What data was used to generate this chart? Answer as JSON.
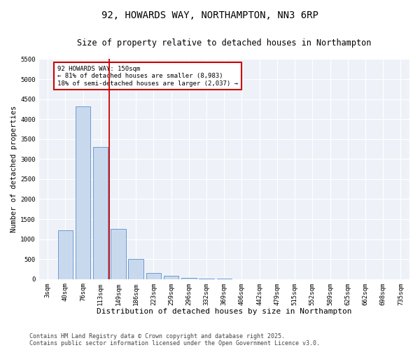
{
  "title": "92, HOWARDS WAY, NORTHAMPTON, NN3 6RP",
  "subtitle": "Size of property relative to detached houses in Northampton",
  "xlabel": "Distribution of detached houses by size in Northampton",
  "ylabel": "Number of detached properties",
  "categories": [
    "3sqm",
    "40sqm",
    "76sqm",
    "113sqm",
    "149sqm",
    "186sqm",
    "223sqm",
    "259sqm",
    "296sqm",
    "332sqm",
    "369sqm",
    "406sqm",
    "442sqm",
    "479sqm",
    "515sqm",
    "552sqm",
    "589sqm",
    "625sqm",
    "662sqm",
    "698sqm",
    "735sqm"
  ],
  "values": [
    0,
    1220,
    4310,
    3310,
    1250,
    500,
    160,
    75,
    30,
    10,
    5,
    0,
    0,
    0,
    0,
    0,
    0,
    0,
    0,
    0,
    0
  ],
  "bar_color": "#c9d9ed",
  "bar_edge_color": "#5b8fcc",
  "vline_x": 3.5,
  "vline_color": "#cc0000",
  "annotation_text": "92 HOWARDS WAY: 150sqm\n← 81% of detached houses are smaller (8,983)\n18% of semi-detached houses are larger (2,037) →",
  "annotation_box_color": "#cc0000",
  "ylim": [
    0,
    5500
  ],
  "yticks": [
    0,
    500,
    1000,
    1500,
    2000,
    2500,
    3000,
    3500,
    4000,
    4500,
    5000,
    5500
  ],
  "background_color": "#eef2f8",
  "grid_color": "#ffffff",
  "footer_line1": "Contains HM Land Registry data © Crown copyright and database right 2025.",
  "footer_line2": "Contains public sector information licensed under the Open Government Licence v3.0.",
  "title_fontsize": 10,
  "subtitle_fontsize": 8.5,
  "xlabel_fontsize": 8,
  "ylabel_fontsize": 7.5,
  "tick_fontsize": 6.5,
  "annotation_fontsize": 6.5,
  "footer_fontsize": 6
}
